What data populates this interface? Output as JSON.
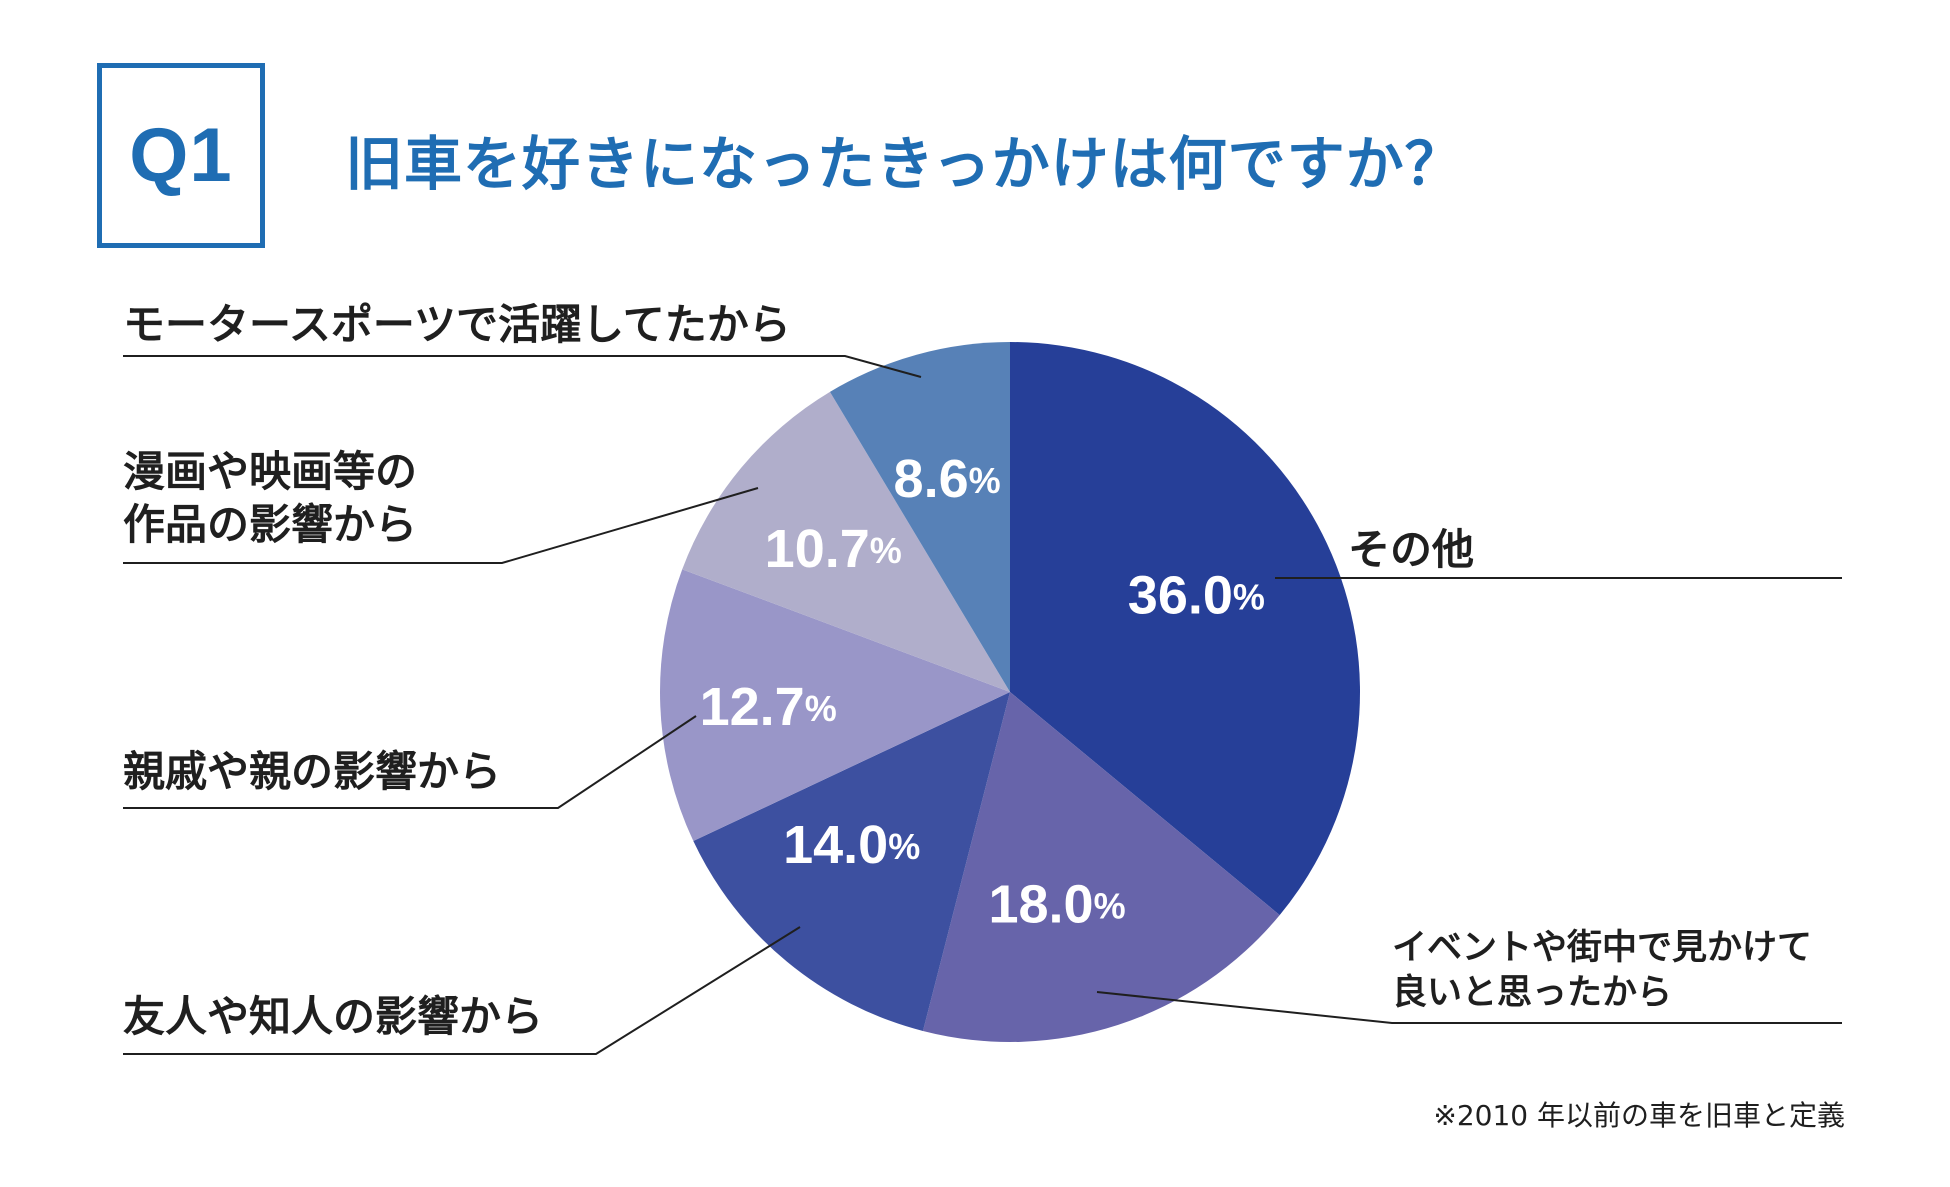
{
  "header": {
    "badge": "Q1",
    "title": "旧車を好きになったきっかけは何ですか？"
  },
  "footnote": "※2010 年以前の車を旧車と定義",
  "colors": {
    "accent": "#1f6db3",
    "text": "#1f1f1f",
    "slices": [
      "#263f98",
      "#6764aa",
      "#3d50a0",
      "#9996c8",
      "#b0aecb",
      "#5781b7"
    ]
  },
  "chart_data": {
    "type": "pie",
    "title": "旧車を好きになったきっかけは何ですか？",
    "start": "12 o'clock, clockwise",
    "unit": "%",
    "slices": [
      {
        "label": "その他",
        "value": 36.0,
        "value_label": "36.0"
      },
      {
        "label": "イベントや街中で見かけて良いと思ったから",
        "label_lines": [
          "イベントや街中で見かけて",
          "良いと思ったから"
        ],
        "value": 18.0,
        "value_label": "18.0"
      },
      {
        "label": "友人や知人の影響から",
        "value": 14.0,
        "value_label": "14.0"
      },
      {
        "label": "親戚や親の影響から",
        "value": 12.7,
        "value_label": "12.7"
      },
      {
        "label": "漫画や映画等の作品の影響から",
        "label_lines": [
          "漫画や映画等の",
          "作品の影響から"
        ],
        "value": 10.7,
        "value_label": "10.7"
      },
      {
        "label": "モータースポーツで活躍してたから",
        "value": 8.6,
        "value_label": "8.6"
      }
    ]
  }
}
